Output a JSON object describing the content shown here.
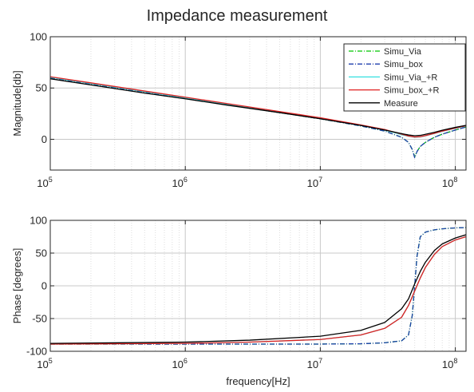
{
  "figure_title": "Impedance measurement",
  "chart_data": [
    {
      "type": "line",
      "title": "Impedance measurement",
      "xlabel": "",
      "ylabel": "Magnitude[db]",
      "x_scale": "log",
      "xlim": [
        100000,
        120000000
      ],
      "ylim": [
        -30,
        100
      ],
      "x_ticks": [
        100000,
        1000000,
        10000000,
        100000000
      ],
      "x_tick_labels": [
        {
          "base": "10",
          "exp": "5"
        },
        {
          "base": "10",
          "exp": "6"
        },
        {
          "base": "10",
          "exp": "7"
        },
        {
          "base": "10",
          "exp": "8"
        }
      ],
      "y_ticks": [
        0,
        50,
        100
      ],
      "y_tick_labels": [
        "0",
        "50",
        "100"
      ],
      "grid": true,
      "legend_position": "top-right",
      "series": [
        {
          "name": "Simu_Via",
          "color": "#00c800",
          "dash": "dash-dot",
          "x": [
            100000,
            200000,
            500000,
            1000000,
            2000000,
            5000000,
            10000000,
            20000000,
            30000000,
            40000000,
            45000000,
            48000000,
            50000000,
            52000000,
            55000000,
            60000000,
            70000000,
            80000000,
            100000000,
            120000000
          ],
          "y": [
            60,
            54,
            46,
            40,
            34,
            26,
            20,
            13,
            8,
            2,
            -3,
            -10,
            -17,
            -12,
            -7,
            -3,
            2,
            5,
            9,
            12
          ]
        },
        {
          "name": "Simu_box",
          "color": "#1f3fae",
          "dash": "dash-dot",
          "x": [
            100000,
            200000,
            500000,
            1000000,
            2000000,
            5000000,
            10000000,
            20000000,
            30000000,
            40000000,
            45000000,
            48000000,
            50000000,
            52000000,
            55000000,
            60000000,
            70000000,
            80000000,
            100000000,
            120000000
          ],
          "y": [
            60,
            54,
            46,
            40,
            34,
            26,
            20,
            13,
            8,
            2,
            -3,
            -10,
            -18,
            -12,
            -7,
            -3,
            2,
            5,
            9,
            12
          ]
        },
        {
          "name": "Simu_Via_+R",
          "color": "#33e0e0",
          "dash": "solid",
          "x": [
            100000,
            200000,
            500000,
            1000000,
            2000000,
            5000000,
            10000000,
            20000000,
            30000000,
            40000000,
            45000000,
            50000000,
            55000000,
            60000000,
            70000000,
            80000000,
            100000000,
            120000000
          ],
          "y": [
            60.5,
            54.5,
            46.5,
            40.5,
            34.5,
            26.5,
            20.5,
            13.5,
            9,
            4.5,
            3,
            2,
            2.3,
            3.4,
            5.6,
            7.8,
            10.8,
            13
          ]
        },
        {
          "name": "Simu_box_+R",
          "color": "#e02020",
          "dash": "solid",
          "x": [
            100000,
            200000,
            500000,
            1000000,
            2000000,
            5000000,
            10000000,
            20000000,
            30000000,
            40000000,
            45000000,
            50000000,
            55000000,
            60000000,
            70000000,
            80000000,
            100000000,
            120000000
          ],
          "y": [
            61,
            55,
            47,
            41,
            35,
            27,
            21,
            14,
            9.5,
            5,
            3.2,
            2.2,
            2.5,
            3.6,
            5.8,
            8,
            11,
            13.2
          ]
        },
        {
          "name": "Measure",
          "color": "#000000",
          "dash": "solid",
          "x": [
            100000,
            200000,
            500000,
            1000000,
            2000000,
            5000000,
            10000000,
            20000000,
            30000000,
            40000000,
            45000000,
            50000000,
            55000000,
            60000000,
            70000000,
            80000000,
            100000000,
            120000000
          ],
          "y": [
            59,
            53,
            45,
            39.5,
            33.5,
            26,
            20,
            13.5,
            9,
            5.5,
            4.2,
            3.5,
            3.8,
            4.8,
            6.8,
            8.8,
            11.6,
            13.6
          ]
        }
      ]
    },
    {
      "type": "line",
      "title": "",
      "xlabel": "frequency[Hz]",
      "ylabel": "Phase [degrees]",
      "x_scale": "log",
      "xlim": [
        100000,
        120000000
      ],
      "ylim": [
        -100,
        100
      ],
      "x_ticks": [
        100000,
        1000000,
        10000000,
        100000000
      ],
      "x_tick_labels": [
        {
          "base": "10",
          "exp": "5"
        },
        {
          "base": "10",
          "exp": "6"
        },
        {
          "base": "10",
          "exp": "7"
        },
        {
          "base": "10",
          "exp": "8"
        }
      ],
      "y_ticks": [
        -100,
        -50,
        0,
        50,
        100
      ],
      "y_tick_labels": [
        "-100",
        "-50",
        "0",
        "50",
        "100"
      ],
      "grid": true,
      "series": [
        {
          "name": "Simu_Via",
          "color": "#00c800",
          "dash": "dash-dot",
          "x": [
            100000,
            1000000,
            5000000,
            10000000,
            20000000,
            30000000,
            40000000,
            45000000,
            48000000,
            50000000,
            52000000,
            55000000,
            60000000,
            70000000,
            80000000,
            100000000,
            120000000
          ],
          "y": [
            -89,
            -89,
            -89,
            -89,
            -88.5,
            -87,
            -84,
            -75,
            -45,
            0,
            45,
            75,
            82,
            85.5,
            87,
            88.5,
            89
          ]
        },
        {
          "name": "Simu_box",
          "color": "#1f3fae",
          "dash": "dash-dot",
          "x": [
            100000,
            1000000,
            5000000,
            10000000,
            20000000,
            30000000,
            40000000,
            45000000,
            48000000,
            50000000,
            52000000,
            55000000,
            60000000,
            70000000,
            80000000,
            100000000,
            120000000
          ],
          "y": [
            -89,
            -89,
            -89,
            -89,
            -88.5,
            -87,
            -84,
            -75,
            -45,
            0,
            45,
            75,
            82,
            85.5,
            87,
            88.5,
            89
          ]
        },
        {
          "name": "Simu_Via_+R",
          "color": "#33e0e0",
          "dash": "solid",
          "x": [
            100000,
            1000000,
            3000000,
            10000000,
            20000000,
            30000000,
            40000000,
            45000000,
            50000000,
            55000000,
            60000000,
            70000000,
            80000000,
            100000000,
            120000000
          ],
          "y": [
            -89,
            -88,
            -86,
            -82,
            -75,
            -65,
            -48,
            -30,
            -8,
            12,
            28,
            48,
            60,
            70,
            75
          ]
        },
        {
          "name": "Simu_box_+R",
          "color": "#e02020",
          "dash": "solid",
          "x": [
            100000,
            1000000,
            3000000,
            10000000,
            20000000,
            30000000,
            40000000,
            45000000,
            50000000,
            55000000,
            60000000,
            70000000,
            80000000,
            100000000,
            120000000
          ],
          "y": [
            -89,
            -88,
            -86,
            -82,
            -75,
            -65,
            -48,
            -30,
            -8,
            12,
            28,
            48,
            60,
            70,
            75
          ]
        },
        {
          "name": "Measure",
          "color": "#000000",
          "dash": "solid",
          "x": [
            100000,
            1000000,
            3000000,
            10000000,
            20000000,
            30000000,
            40000000,
            45000000,
            50000000,
            55000000,
            60000000,
            70000000,
            80000000,
            100000000,
            120000000
          ],
          "y": [
            -88,
            -86,
            -83,
            -77,
            -68,
            -56,
            -35,
            -20,
            3,
            22,
            36,
            54,
            64,
            73,
            78
          ]
        }
      ]
    }
  ]
}
